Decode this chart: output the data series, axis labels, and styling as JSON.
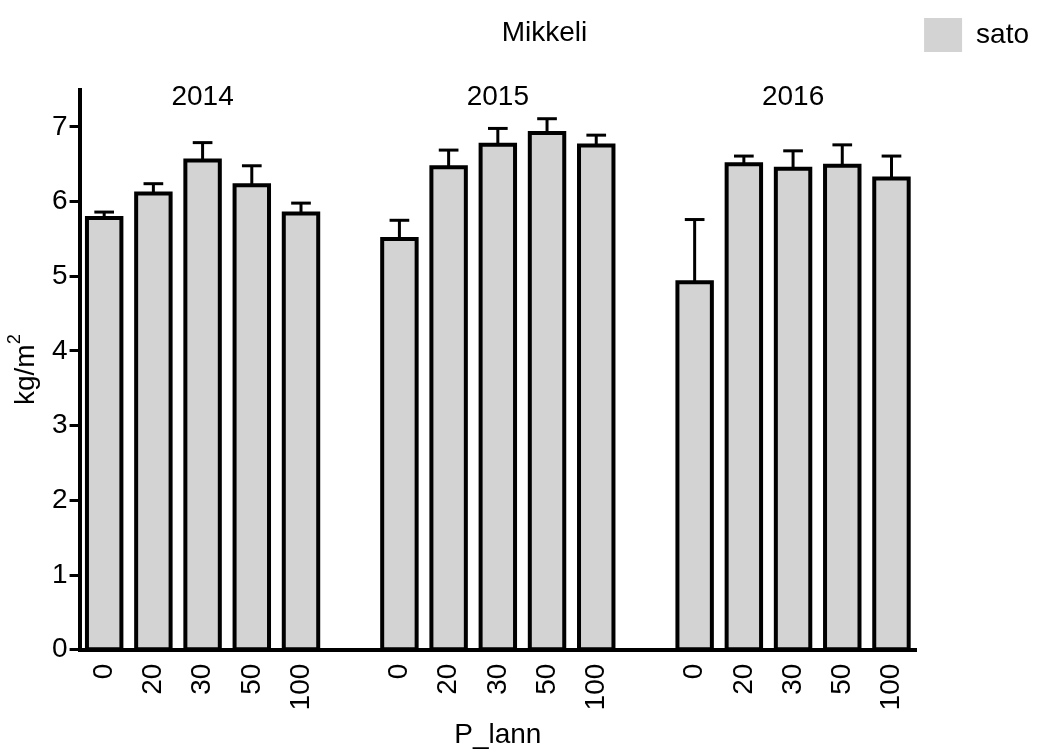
{
  "chart_data": {
    "type": "bar",
    "title": "Mikkeli",
    "xlabel": "P_lann",
    "ylabel": "kg/m$^{2}$",
    "categories": [
      "0",
      "20",
      "30",
      "50",
      "100",
      null,
      "0",
      "20",
      "30",
      "50",
      "100",
      null,
      "0",
      "20",
      "30",
      "50",
      "100"
    ],
    "series": [
      {
        "name": "sato",
        "color": "#d3d3d3",
        "values": [
          5.78,
          6.11,
          6.55,
          6.22,
          5.84,
          null,
          5.5,
          6.46,
          6.76,
          6.92,
          6.75,
          null,
          4.92,
          6.5,
          6.44,
          6.48,
          6.31
        ],
        "errors": [
          [
            5.78,
            5.86
          ],
          [
            6.11,
            6.24
          ],
          [
            6.55,
            6.79
          ],
          [
            6.22,
            6.48
          ],
          [
            5.84,
            5.98
          ],
          null,
          [
            5.5,
            5.75
          ],
          [
            6.46,
            6.69
          ],
          [
            6.76,
            6.98
          ],
          [
            6.92,
            7.11
          ],
          [
            6.75,
            6.89
          ],
          null,
          [
            4.92,
            5.76
          ],
          [
            6.5,
            6.61
          ],
          [
            6.44,
            6.68
          ],
          [
            6.48,
            6.76
          ],
          [
            6.31,
            6.61
          ]
        ]
      }
    ],
    "annotations": [
      "2014",
      "2015",
      "2016"
    ],
    "ylim": [
      0,
      7.5
    ],
    "yticks": [
      0,
      1,
      2,
      3,
      4,
      5,
      6,
      7
    ],
    "grid": false,
    "legend": "top right"
  }
}
